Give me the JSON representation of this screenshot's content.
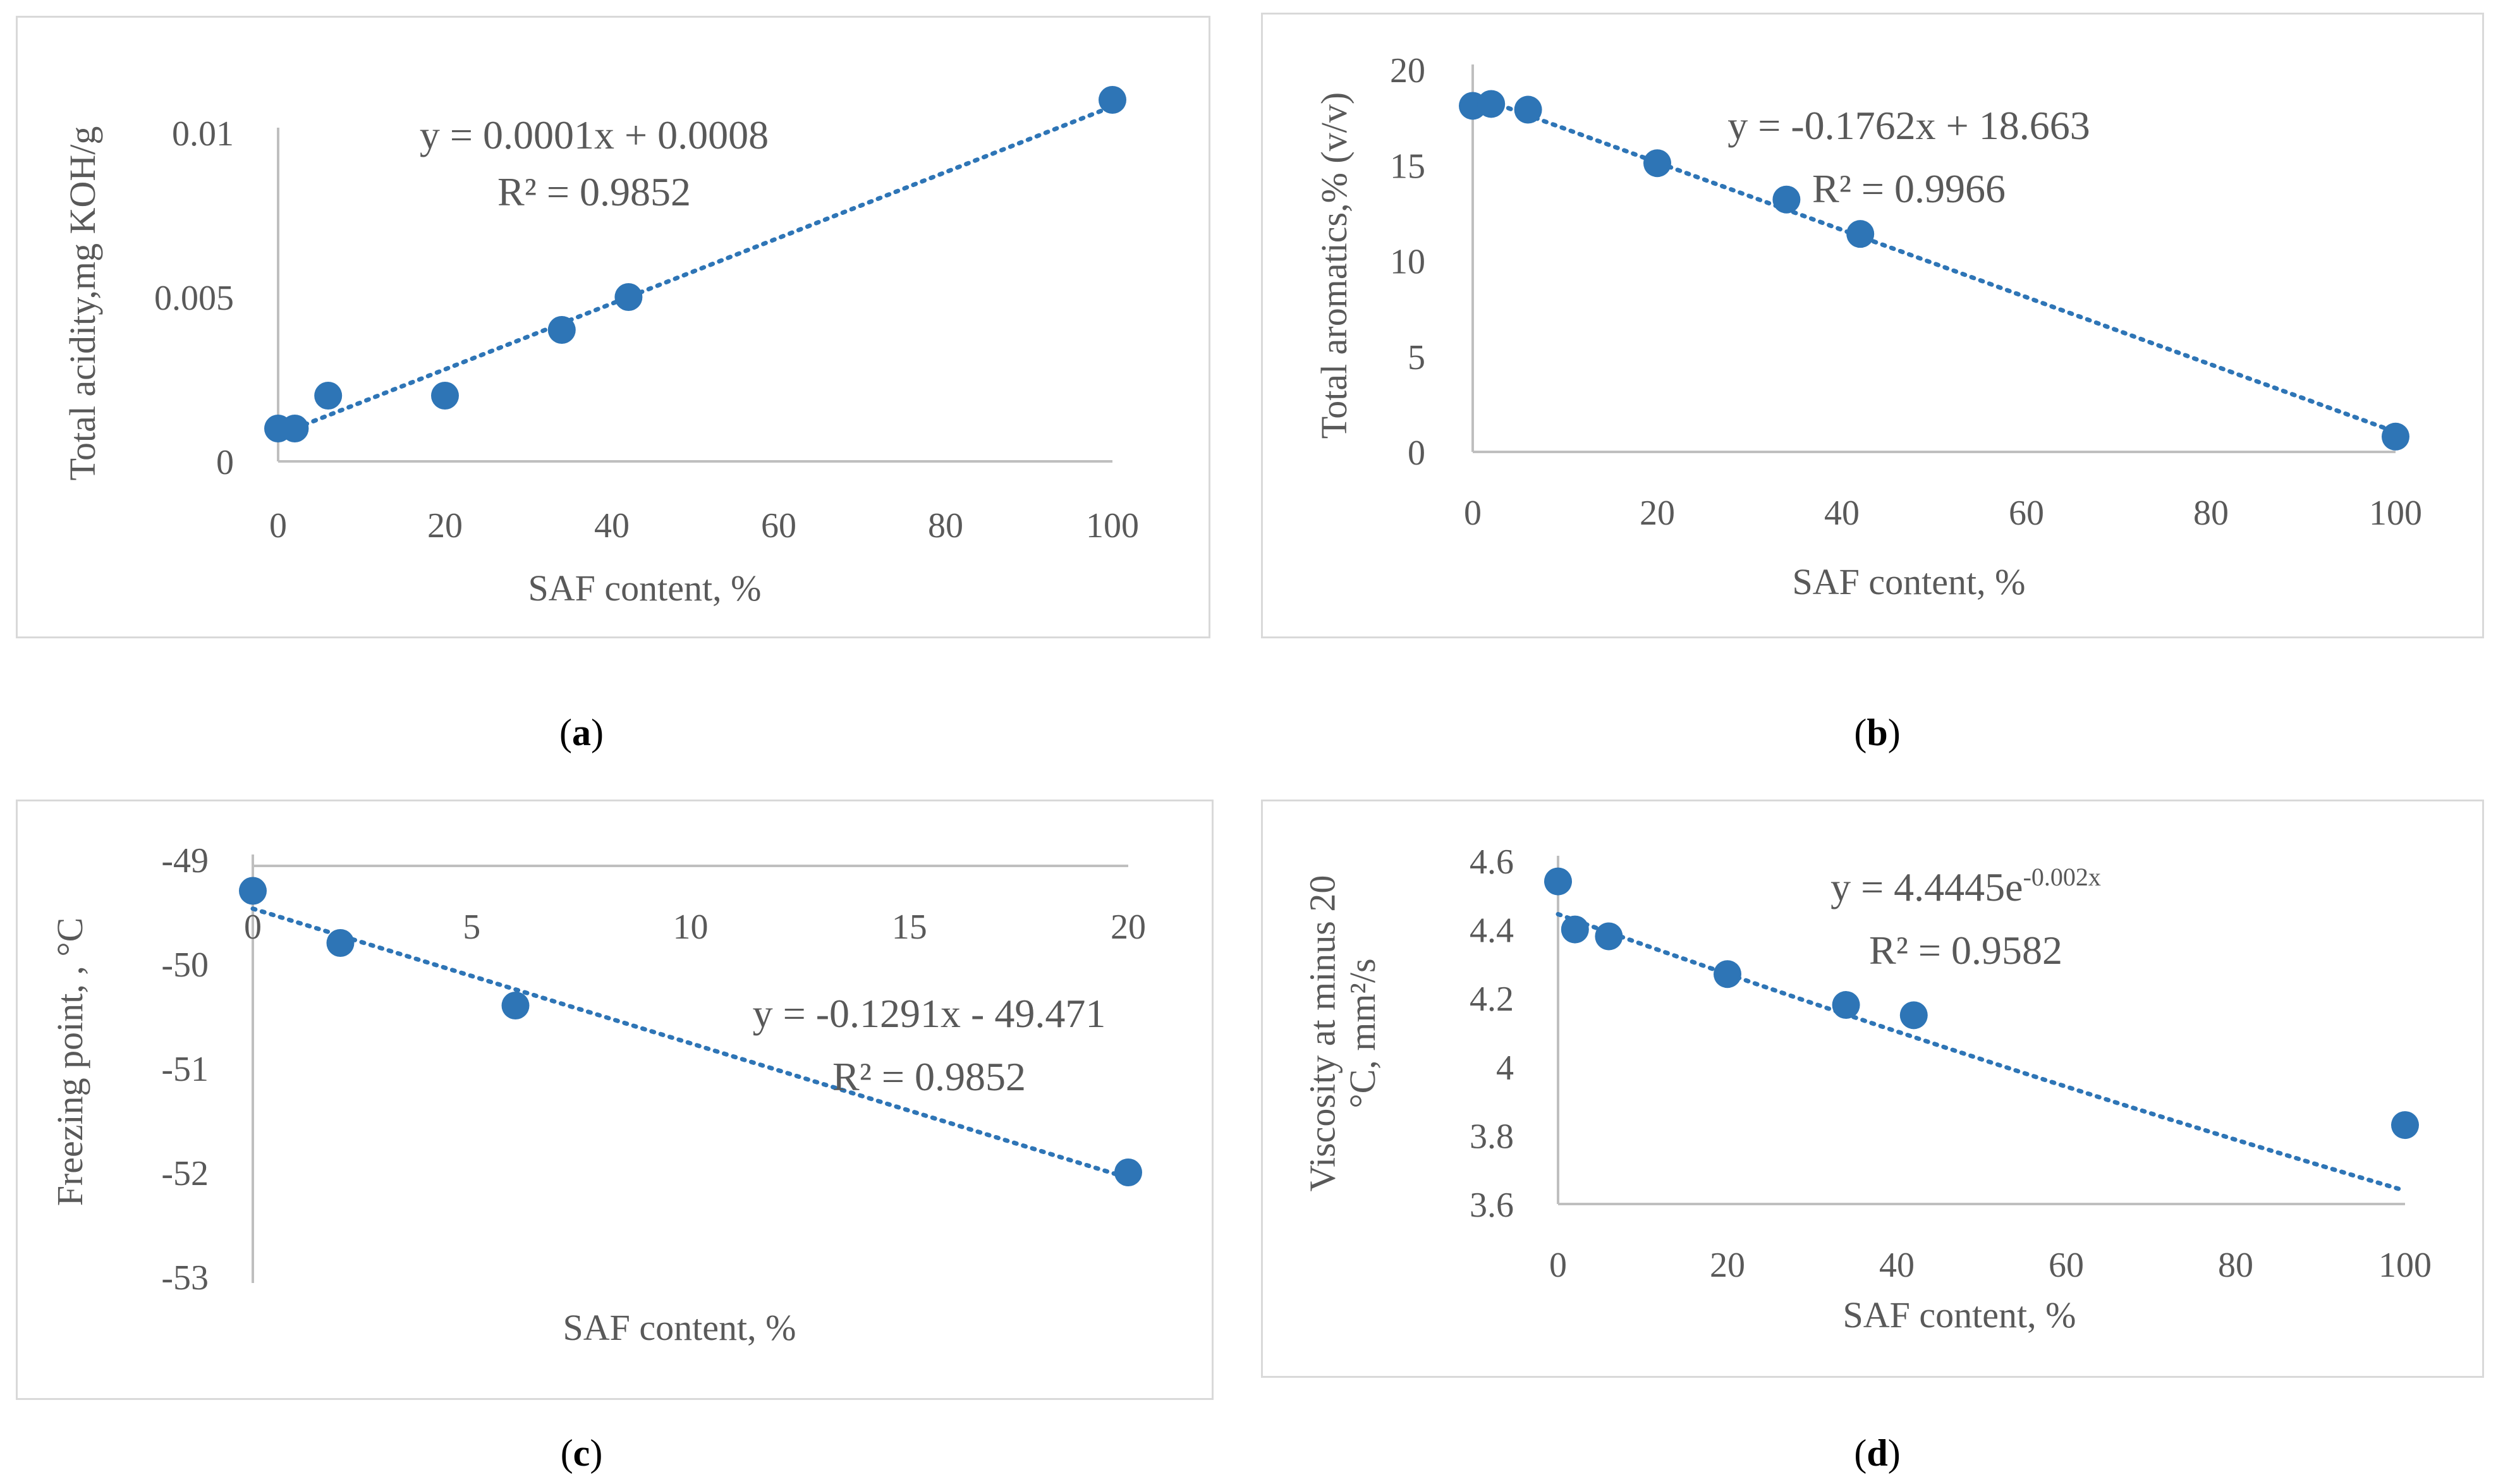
{
  "captions": [
    {
      "open": "(",
      "letter": "a",
      "close": ")"
    },
    {
      "open": "(",
      "letter": "b",
      "close": ")"
    },
    {
      "open": "(",
      "letter": "c",
      "close": ")"
    },
    {
      "open": "(",
      "letter": "d",
      "close": ")"
    }
  ],
  "colors": {
    "marker": "#2e75b6",
    "trend": "#2e75b6",
    "axis": "#bfbfbf",
    "text": "#595959",
    "frame": "#d9d9d9"
  },
  "chart_data": [
    {
      "type": "scatter",
      "xlabel": "SAF content, %",
      "ylabel": "Total acidity,mg KOH/g",
      "xticks": [
        "0",
        "20",
        "40",
        "60",
        "80",
        "100"
      ],
      "yticks": [
        "0",
        "0.005",
        "0.01"
      ],
      "xlim": [
        0,
        100
      ],
      "ylim": [
        0,
        0.01
      ],
      "x": [
        0,
        2,
        6,
        20,
        34,
        42,
        100
      ],
      "y": [
        0.001,
        0.001,
        0.002,
        0.002,
        0.004,
        0.005,
        0.011
      ],
      "trendline": {
        "type": "linear",
        "slope": 0.0001,
        "intercept": 0.0008
      },
      "equation": "y = 0.0001x + 0.0008",
      "r2": "R² = 0.9852"
    },
    {
      "type": "scatter",
      "xlabel": "SAF content, %",
      "ylabel": "Total aromatics,% (v/v)",
      "xticks": [
        "0",
        "20",
        "40",
        "60",
        "80",
        "100"
      ],
      "yticks": [
        "0",
        "5",
        "10",
        "15",
        "20"
      ],
      "xlim": [
        0,
        100
      ],
      "ylim": [
        0,
        20
      ],
      "x": [
        0,
        2,
        6,
        20,
        34,
        42,
        100
      ],
      "y": [
        18.1,
        18.2,
        17.9,
        15.1,
        13.2,
        11.4,
        0.8
      ],
      "trendline": {
        "type": "linear",
        "slope": -0.1762,
        "intercept": 18.663
      },
      "equation": "y = -0.1762x + 18.663",
      "r2": "R² = 0.9966"
    },
    {
      "type": "scatter",
      "xlabel": "SAF content, %",
      "ylabel": "Freezing point, , °C",
      "xticks": [
        "0",
        "5",
        "10",
        "15",
        "20"
      ],
      "yticks": [
        "-49",
        "-50",
        "-51",
        "-52",
        "-53"
      ],
      "xlim": [
        0,
        20
      ],
      "ylim": [
        -53,
        -49
      ],
      "x": [
        0,
        2,
        6,
        20
      ],
      "y": [
        -49.3,
        -49.8,
        -50.4,
        -52.0
      ],
      "trendline": {
        "type": "linear",
        "slope": -0.1291,
        "intercept": -49.471
      },
      "equation": "y = -0.1291x - 49.471",
      "r2": "R² = 0.9852"
    },
    {
      "type": "scatter",
      "xlabel": "SAF content, %",
      "ylabel_line1": "Viscosity at minus 20",
      "ylabel_line2": "°C, mm²/s",
      "xticks": [
        "0",
        "20",
        "40",
        "60",
        "80",
        "100"
      ],
      "yticks": [
        "3.6",
        "3.8",
        "4",
        "4.2",
        "4.4",
        "4.6"
      ],
      "xlim": [
        0,
        100
      ],
      "ylim": [
        3.6,
        4.6
      ],
      "x": [
        0,
        2,
        6,
        20,
        34,
        42,
        100
      ],
      "y": [
        4.54,
        4.4,
        4.38,
        4.27,
        4.18,
        4.15,
        3.83
      ],
      "trendline": {
        "type": "exponential",
        "a": 4.4445,
        "b": -0.002
      },
      "equation_base": "y = 4.4445e",
      "equation_exp": "-0.002x",
      "r2": "R² = 0.9582"
    }
  ]
}
